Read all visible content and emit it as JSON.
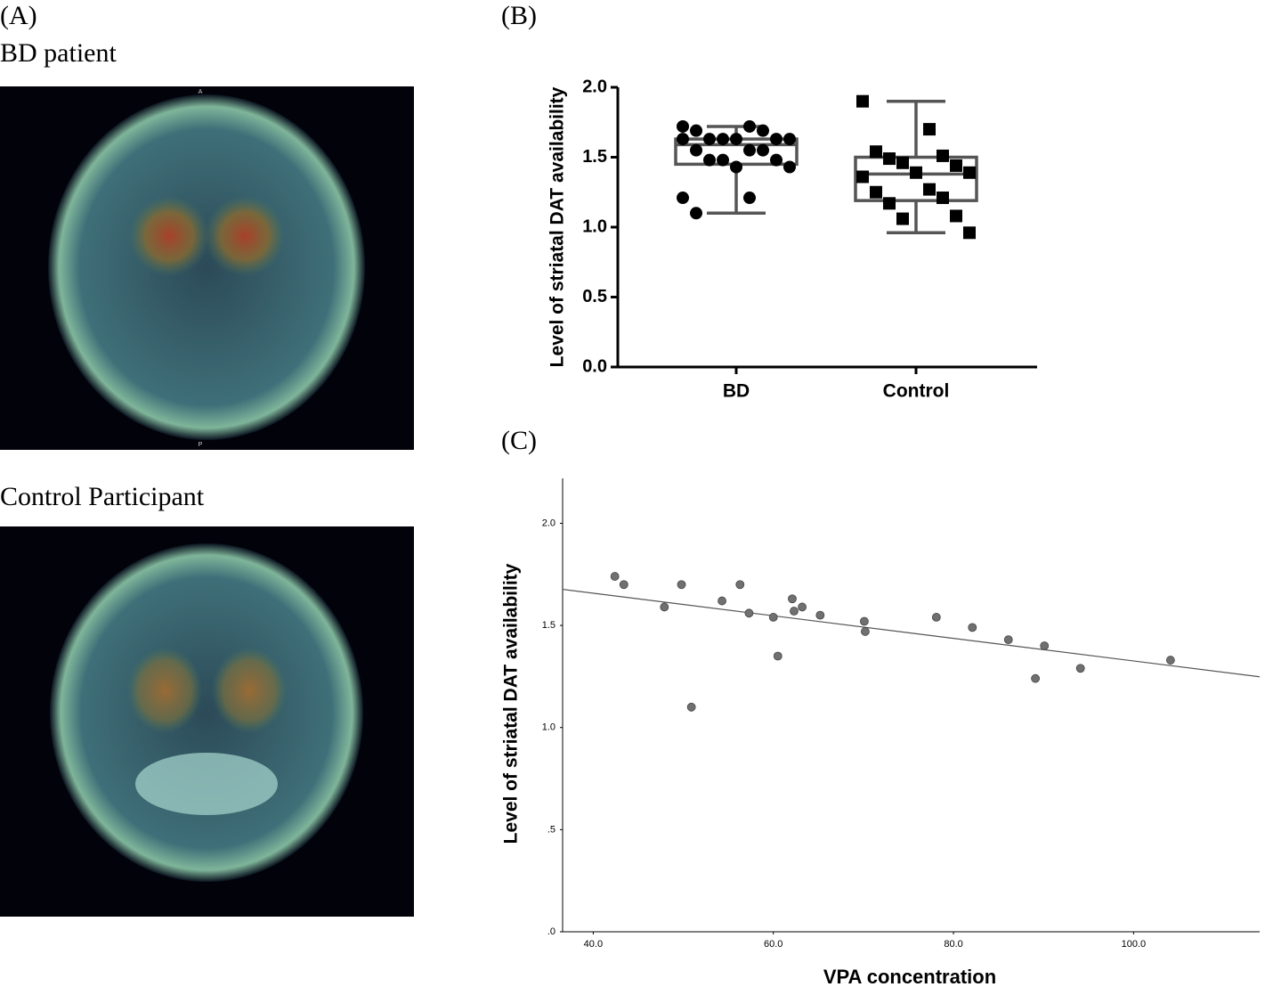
{
  "panel_a": {
    "label": "(A)",
    "captions": [
      "BD patient",
      "Control Participant"
    ],
    "orientation_marks": [
      "A",
      "P"
    ]
  },
  "panel_labels": [
    "(B)",
    "(C)"
  ],
  "chart_data": [
    {
      "type": "box",
      "y_label": "Level of striatal DAT availability",
      "categories": [
        "BD",
        "Control"
      ],
      "markers": [
        "circle",
        "square"
      ],
      "color": "#000000",
      "box_color": "#555555",
      "groups": [
        [
          1.72,
          1.72,
          1.69,
          1.69,
          1.63,
          1.63,
          1.63,
          1.63,
          1.63,
          1.63,
          1.55,
          1.55,
          1.55,
          1.48,
          1.48,
          1.48,
          1.43,
          1.43,
          1.21,
          1.21,
          1.1
        ],
        [
          1.9,
          1.7,
          1.54,
          1.51,
          1.49,
          1.44,
          1.46,
          1.39,
          1.39,
          1.36,
          1.27,
          1.25,
          1.21,
          1.17,
          1.08,
          1.06,
          0.96
        ]
      ],
      "box": [
        {
          "min": 1.1,
          "q1": 1.45,
          "median": 1.59,
          "q3": 1.63,
          "max": 1.72
        },
        {
          "min": 0.96,
          "q1": 1.19,
          "median": 1.38,
          "q3": 1.5,
          "max": 1.9
        }
      ],
      "ylim": [
        0,
        2.0
      ],
      "yticks": [
        {
          "value": 0,
          "label": "0.0"
        },
        0.5,
        {
          "value": 1,
          "label": "1.0"
        },
        1.5,
        {
          "value": 2,
          "label": "2.0"
        }
      ]
    },
    {
      "type": "scatter",
      "x_label": "VPA concentration",
      "y_label": "Level of striatal DAT availability",
      "color": "#707070",
      "x": [
        42.4,
        43.4,
        47.9,
        49.8,
        50.9,
        54.3,
        56.3,
        57.3,
        60.0,
        60.5,
        62.1,
        62.3,
        63.2,
        65.2,
        70.1,
        70.2,
        78.1,
        82.1,
        86.1,
        90.1,
        89.1,
        94.1,
        104.1
      ],
      "y": [
        1.74,
        1.7,
        1.59,
        1.7,
        1.1,
        1.62,
        1.7,
        1.56,
        1.54,
        1.35,
        1.63,
        1.57,
        1.59,
        1.55,
        1.52,
        1.47,
        1.54,
        1.49,
        1.43,
        1.4,
        1.24,
        1.29,
        1.33
      ],
      "trend": {
        "slope": -0.00553,
        "intercept": 1.879
      },
      "xlim": [
        36.6,
        114.0
      ],
      "ylim": [
        0,
        2.22
      ],
      "xticks": [
        {
          "value": 40,
          "label": "40.0"
        },
        {
          "value": 60,
          "label": "60.0"
        },
        {
          "value": 80,
          "label": "80.0"
        },
        {
          "value": 100,
          "label": "100.0"
        }
      ],
      "yticks": [
        {
          "value": 0,
          "label": ".0"
        },
        {
          "value": 0.5,
          "label": ".5"
        },
        {
          "value": 1,
          "label": "1.0"
        },
        1.5,
        {
          "value": 2,
          "label": "2.0"
        }
      ]
    }
  ]
}
